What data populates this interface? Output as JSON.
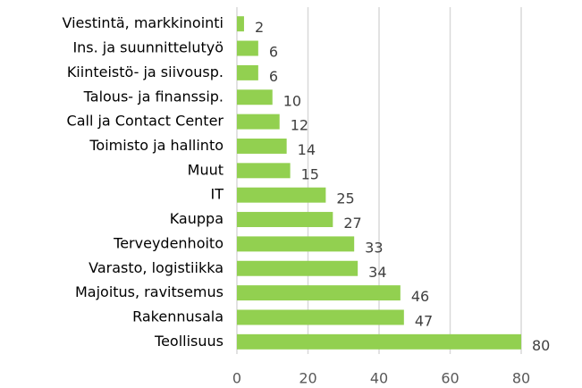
{
  "chart_data": {
    "type": "bar",
    "orientation": "horizontal",
    "categories": [
      "Viestintä, markkinointi",
      "Ins. ja suunnittelutyö",
      "Kiinteistö- ja siivousp.",
      "Talous- ja finanssip.",
      "Call ja Contact Center",
      "Toimisto ja hallinto",
      "Muut",
      "IT",
      "Kauppa",
      "Terveydenhoito",
      "Varasto, logistiikka",
      "Majoitus, ravitsemus",
      "Rakennusala",
      "Teollisuus"
    ],
    "values": [
      2,
      6,
      6,
      10,
      12,
      14,
      15,
      25,
      27,
      33,
      34,
      46,
      47,
      80
    ],
    "color": "#92d050",
    "xlim": [
      0,
      80
    ],
    "xticks": [
      0,
      20,
      40,
      60,
      80
    ],
    "grid": true
  }
}
